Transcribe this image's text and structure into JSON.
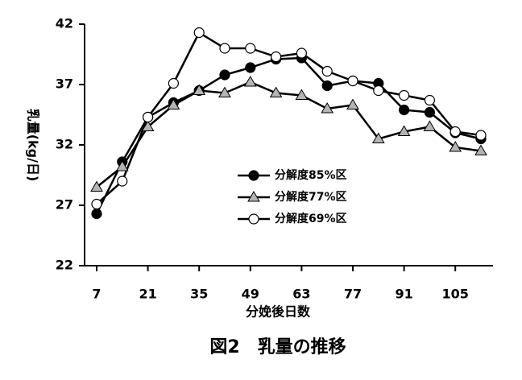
{
  "chart_data": {
    "type": "line",
    "title": "図2　乳量の推移",
    "x_label": "分娩後日数",
    "y_label": "乳量(kg/日)",
    "x": [
      7,
      14,
      21,
      28,
      35,
      42,
      49,
      56,
      63,
      70,
      77,
      84,
      91,
      98,
      105,
      112
    ],
    "series": [
      {
        "name": "分解度85%区",
        "color": "#000000",
        "marker": "circle",
        "marker_fill": "#000000",
        "values": [
          26.3,
          30.6,
          34.3,
          35.5,
          36.5,
          37.8,
          38.4,
          39.1,
          39.2,
          36.9,
          37.3,
          37.1,
          34.9,
          34.7,
          33.0,
          32.5
        ]
      },
      {
        "name": "分解度77%区",
        "color": "#000000",
        "marker": "triangle",
        "marker_fill": "#b4b4b4",
        "values": [
          28.5,
          30.2,
          33.5,
          35.3,
          36.5,
          36.3,
          37.2,
          36.3,
          36.1,
          35.0,
          35.3,
          32.5,
          33.1,
          33.5,
          31.8,
          31.5
        ]
      },
      {
        "name": "分解度69%区",
        "color": "#000000",
        "marker": "circle",
        "marker_fill": "#ffffff",
        "values": [
          27.1,
          29.0,
          34.3,
          37.1,
          41.3,
          40.0,
          40.0,
          39.3,
          39.6,
          38.1,
          37.3,
          36.5,
          36.1,
          35.7,
          33.1,
          32.8
        ]
      }
    ],
    "xlim": [
      3.7,
      115.3
    ],
    "xticks": [
      7,
      21,
      35,
      49,
      63,
      77,
      91,
      105
    ],
    "ylim": [
      22,
      42
    ],
    "yticks": [
      22,
      27,
      32,
      37,
      42
    ],
    "legend": "center",
    "grid": false
  }
}
